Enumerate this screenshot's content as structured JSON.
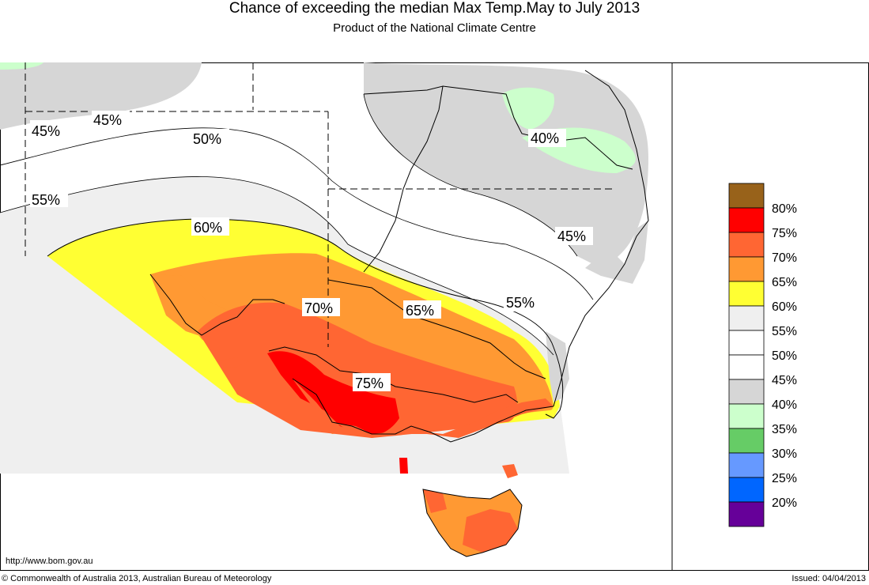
{
  "title": "Chance of exceeding the median Max Temp.May to July 2013",
  "subtitle": "Product of the National Climate Centre",
  "url": "http://www.bom.gov.au",
  "copyright": "© Commonwealth of Australia 2013, Australian Bureau of Meteorology",
  "issued": "Issued: 04/04/2013",
  "contour_labels": [
    "45%",
    "45%",
    "50%",
    "55%",
    "60%",
    "70%",
    "65%",
    "75%",
    "40%",
    "45%",
    "55%"
  ],
  "legend": [
    {
      "label": "80%",
      "color": "#98621a"
    },
    {
      "label": "75%",
      "color": "#ff0000"
    },
    {
      "label": "70%",
      "color": "#ff6633"
    },
    {
      "label": "65%",
      "color": "#ff9933"
    },
    {
      "label": "60%",
      "color": "#ffff33"
    },
    {
      "label": "55%",
      "color": "#efefef"
    },
    {
      "label": "50%",
      "color": "#ffffff"
    },
    {
      "label": "45%",
      "color": "#ffffff"
    },
    {
      "label": "40%",
      "color": "#d6d6d6"
    },
    {
      "label": "35%",
      "color": "#ccffcc"
    },
    {
      "label": "30%",
      "color": "#66cc66"
    },
    {
      "label": "25%",
      "color": "#6699ff"
    },
    {
      "label": "20%",
      "color": "#0066ff"
    },
    {
      "label": "",
      "color": "#660099"
    }
  ]
}
